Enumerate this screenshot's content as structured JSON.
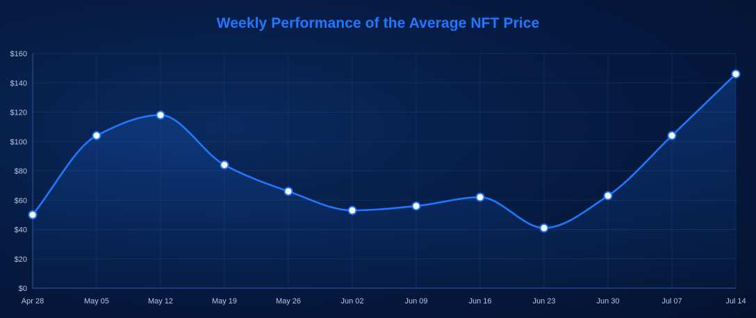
{
  "chart_data": {
    "type": "line",
    "title": "Weekly Performance of the Average NFT Price",
    "xlabel": "",
    "ylabel": "",
    "categories": [
      "Apr 28",
      "May 05",
      "May 12",
      "May 19",
      "May 26",
      "Jun 02",
      "Jun 09",
      "Jun 16",
      "Jun 23",
      "Jun 30",
      "Jul 07",
      "Jul 14"
    ],
    "series": [
      {
        "values": [
          50,
          104,
          118,
          84,
          66,
          53,
          56,
          62,
          41,
          63,
          104,
          146
        ]
      }
    ],
    "ylim": [
      0,
      160
    ],
    "yticks": [
      0,
      20,
      40,
      60,
      80,
      100,
      120,
      140,
      160
    ],
    "ytick_labels": [
      "$0",
      "$20",
      "$40",
      "$60",
      "$80",
      "$100",
      "$120",
      "$140",
      "$160"
    ],
    "grid": true,
    "smooth": true,
    "area_fill": true,
    "legend": "none",
    "colors": {
      "line": "#1f78ff",
      "title": "#1f78ff",
      "point_fill": "#ffffff",
      "grid": "#1a3a6e",
      "tick_text": "#b9c6dc"
    }
  }
}
